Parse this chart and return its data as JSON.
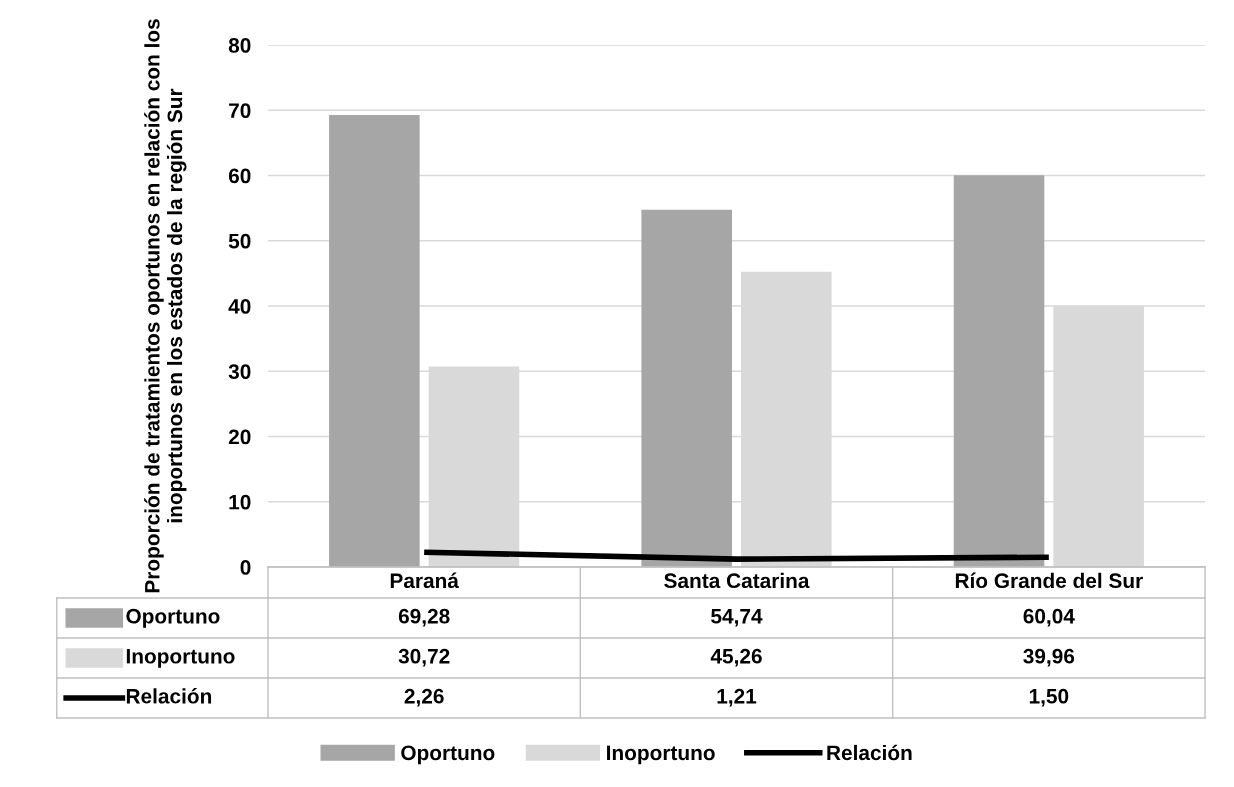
{
  "chart_data": {
    "type": "bar",
    "ylabel": "Proporción de tratamientos oportunos en relación con los inoportunos en los estados de la región Sur",
    "categories": [
      "Paraná",
      "Santa Catarina",
      "Río Grande del Sur"
    ],
    "series": [
      {
        "name": "Oportuno",
        "color": "#a6a6a6",
        "values": [
          69.28,
          54.74,
          60.04
        ],
        "value_labels": [
          "69,28",
          "54,74",
          "60,04"
        ]
      },
      {
        "name": "Inoportuno",
        "color": "#d9d9d9",
        "values": [
          30.72,
          45.26,
          39.96
        ],
        "value_labels": [
          "30,72",
          "45,26",
          "39,96"
        ]
      },
      {
        "name": "Relación",
        "type": "line",
        "color": "#000000",
        "values": [
          2.26,
          1.21,
          1.5
        ],
        "value_labels": [
          "2,26",
          "1,21",
          "1,50"
        ]
      }
    ],
    "ylim": [
      0,
      80
    ],
    "yticks": [
      0,
      10,
      20,
      30,
      40,
      50,
      60,
      70,
      80
    ],
    "grid": "y",
    "legend": "bottom",
    "marker": "none",
    "line_style": "solid"
  }
}
